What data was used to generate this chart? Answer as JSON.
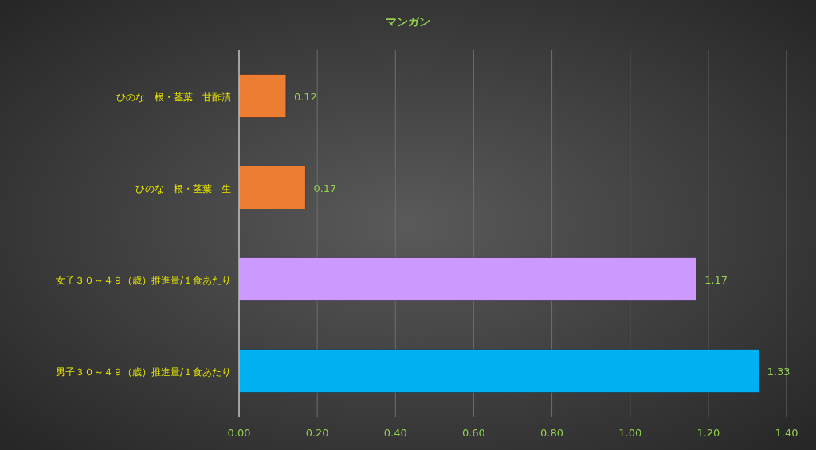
{
  "chart_data": {
    "type": "bar",
    "orientation": "horizontal",
    "title": "マンガン",
    "categories": [
      "ひのな　根・茎葉　甘酢漬",
      "ひのな　根・茎葉　生",
      "女子３０～４９（歳）推進量/１食あたり",
      "男子３０～４９（歳）推進量/１食あたり"
    ],
    "values": [
      0.12,
      0.17,
      1.17,
      1.33
    ],
    "colors": [
      "#ed7d31",
      "#ed7d31",
      "#cc99ff",
      "#00b0f0"
    ],
    "xlim": [
      0,
      1.4
    ],
    "xticks": [
      {
        "value": 0,
        "label": "0.00"
      },
      {
        "value": 0.2,
        "label": "0.20"
      },
      {
        "value": 0.4,
        "label": "0.40"
      },
      {
        "value": 0.6,
        "label": "0.60"
      },
      {
        "value": 0.8,
        "label": "0.80"
      },
      {
        "value": 1,
        "label": "1.00"
      },
      {
        "value": 1.2,
        "label": "1.20"
      },
      {
        "value": 1.4,
        "label": "1.40"
      }
    ],
    "grid": "x",
    "data_labels": true
  }
}
